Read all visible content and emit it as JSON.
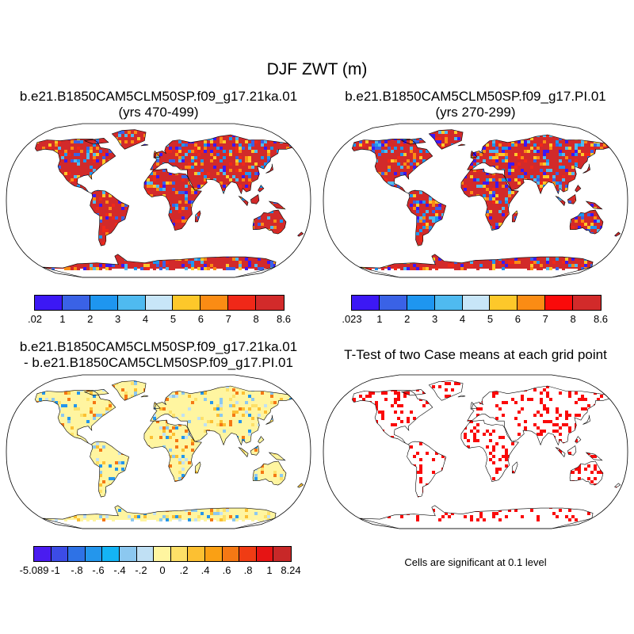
{
  "title": "DJF ZWT (m)",
  "panels": {
    "top_left": {
      "case": "b.e21.B1850CAM5CLM50SP.f09_g17.21ka.01",
      "years": "(yrs 470-499)"
    },
    "top_right": {
      "case": "b.e21.B1850CAM5CLM50SP.f09_g17.PI.01",
      "years": "(yrs 270-299)"
    },
    "bottom_left": {
      "line1": "b.e21.B1850CAM5CLM50SP.f09_g17.21ka.01",
      "line2": "- b.e21.B1850CAM5CLM50SP.f09_g17.PI.01"
    },
    "bottom_right": {
      "title": "T-Test of two Case means at each grid point",
      "note": "Cells are significant at 0.1 level"
    }
  },
  "colorbars": {
    "top_left": {
      "colors": [
        "#3c18f5",
        "#3a62e6",
        "#1e96f0",
        "#4fbaf0",
        "#c8e6f8",
        "#fdc82a",
        "#fb8c14",
        "#f02818",
        "#d22a2a"
      ],
      "labels": [
        ".02",
        "1",
        "2",
        "3",
        "4",
        "5",
        "6",
        "7",
        "8",
        "8.6"
      ]
    },
    "top_right": {
      "colors": [
        "#3c18f5",
        "#3a62e6",
        "#1e96f0",
        "#4fbaf0",
        "#c8e6f8",
        "#fdc82a",
        "#fb8c14",
        "#fa0a0a",
        "#d22a2a"
      ],
      "labels": [
        ".023",
        "1",
        "2",
        "3",
        "4",
        "5",
        "6",
        "7",
        "8",
        "8.6"
      ]
    },
    "bottom_left": {
      "colors": [
        "#4a1cf0",
        "#3c4ce6",
        "#2e72e6",
        "#2496ec",
        "#14b4f5",
        "#8cc8f0",
        "#c0e0f4",
        "#fff5a0",
        "#fde068",
        "#fcc032",
        "#faa014",
        "#f57814",
        "#f03c14",
        "#e61414",
        "#c82828"
      ],
      "labels": [
        "-5.089",
        "-1",
        "-.8",
        "-.6",
        "-.4",
        "-.2",
        "0",
        ".2",
        ".4",
        ".6",
        ".8",
        "1",
        "8.24"
      ]
    }
  }
}
